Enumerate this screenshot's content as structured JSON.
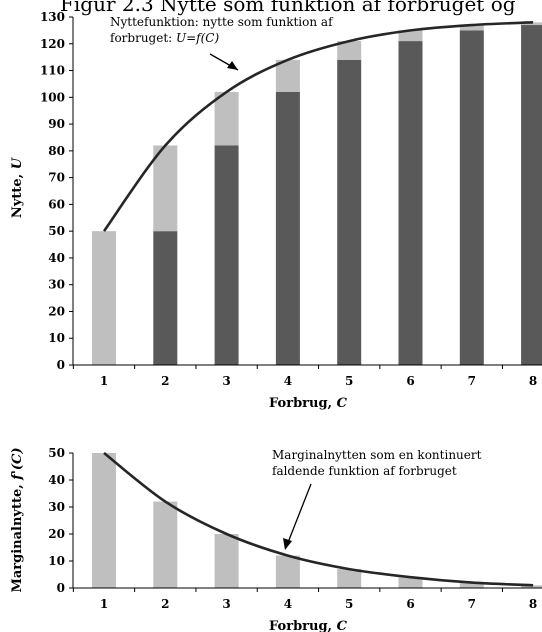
{
  "title": "Figur 2.3 Nytte som funktion af forbruget og",
  "chart_data": [
    {
      "type": "bar",
      "stacked": true,
      "categories": [
        "1",
        "2",
        "3",
        "4",
        "5",
        "6",
        "7",
        "8"
      ],
      "series": [
        {
          "values": [
            0,
            50,
            82,
            102,
            114,
            121,
            125,
            127
          ],
          "color": "#595959"
        },
        {
          "values": [
            50,
            32,
            20,
            12,
            7,
            4,
            2,
            1
          ],
          "color": "#bfbfbf"
        }
      ],
      "line": {
        "values": [
          50,
          82,
          102,
          114,
          121,
          125,
          127,
          128
        ]
      },
      "xlabel": "Forbrug, C",
      "xlabel_prefix": "Forbrug, ",
      "xlabel_var": "C",
      "ylabel": "Nytte, U",
      "ylabel_prefix": "Nytte, ",
      "ylabel_var": "U",
      "ylim": [
        0,
        130
      ],
      "yticks": [
        0,
        10,
        20,
        30,
        40,
        50,
        60,
        70,
        80,
        90,
        100,
        110,
        120,
        130
      ],
      "annotation": {
        "line1": "Nyttefunktion: nytte som funktion af",
        "line2_prefix": "forbruget: ",
        "line2_formula": "U=f(C)"
      },
      "grid": false
    },
    {
      "type": "bar",
      "categories": [
        "1",
        "2",
        "3",
        "4",
        "5",
        "6",
        "7",
        "8"
      ],
      "values": [
        50,
        32,
        20,
        12,
        7,
        4,
        2,
        1
      ],
      "color": "#bfbfbf",
      "line": {
        "values": [
          50,
          32,
          20,
          12,
          7,
          4,
          2,
          1
        ]
      },
      "xlabel": "Forbrug, C",
      "xlabel_prefix": "Forbrug, ",
      "xlabel_var": "C",
      "ylabel": "Marginalnytte, f'(C)",
      "ylabel_prefix": "Marginalnytte, ",
      "ylabel_var": "f'(C)",
      "ylim": [
        0,
        50
      ],
      "yticks": [
        0,
        10,
        20,
        30,
        40,
        50
      ],
      "annotation": {
        "line1": "Marginalnytten som en kontinuert",
        "line2": "faldende funktion af forbruget"
      },
      "grid": false
    }
  ]
}
